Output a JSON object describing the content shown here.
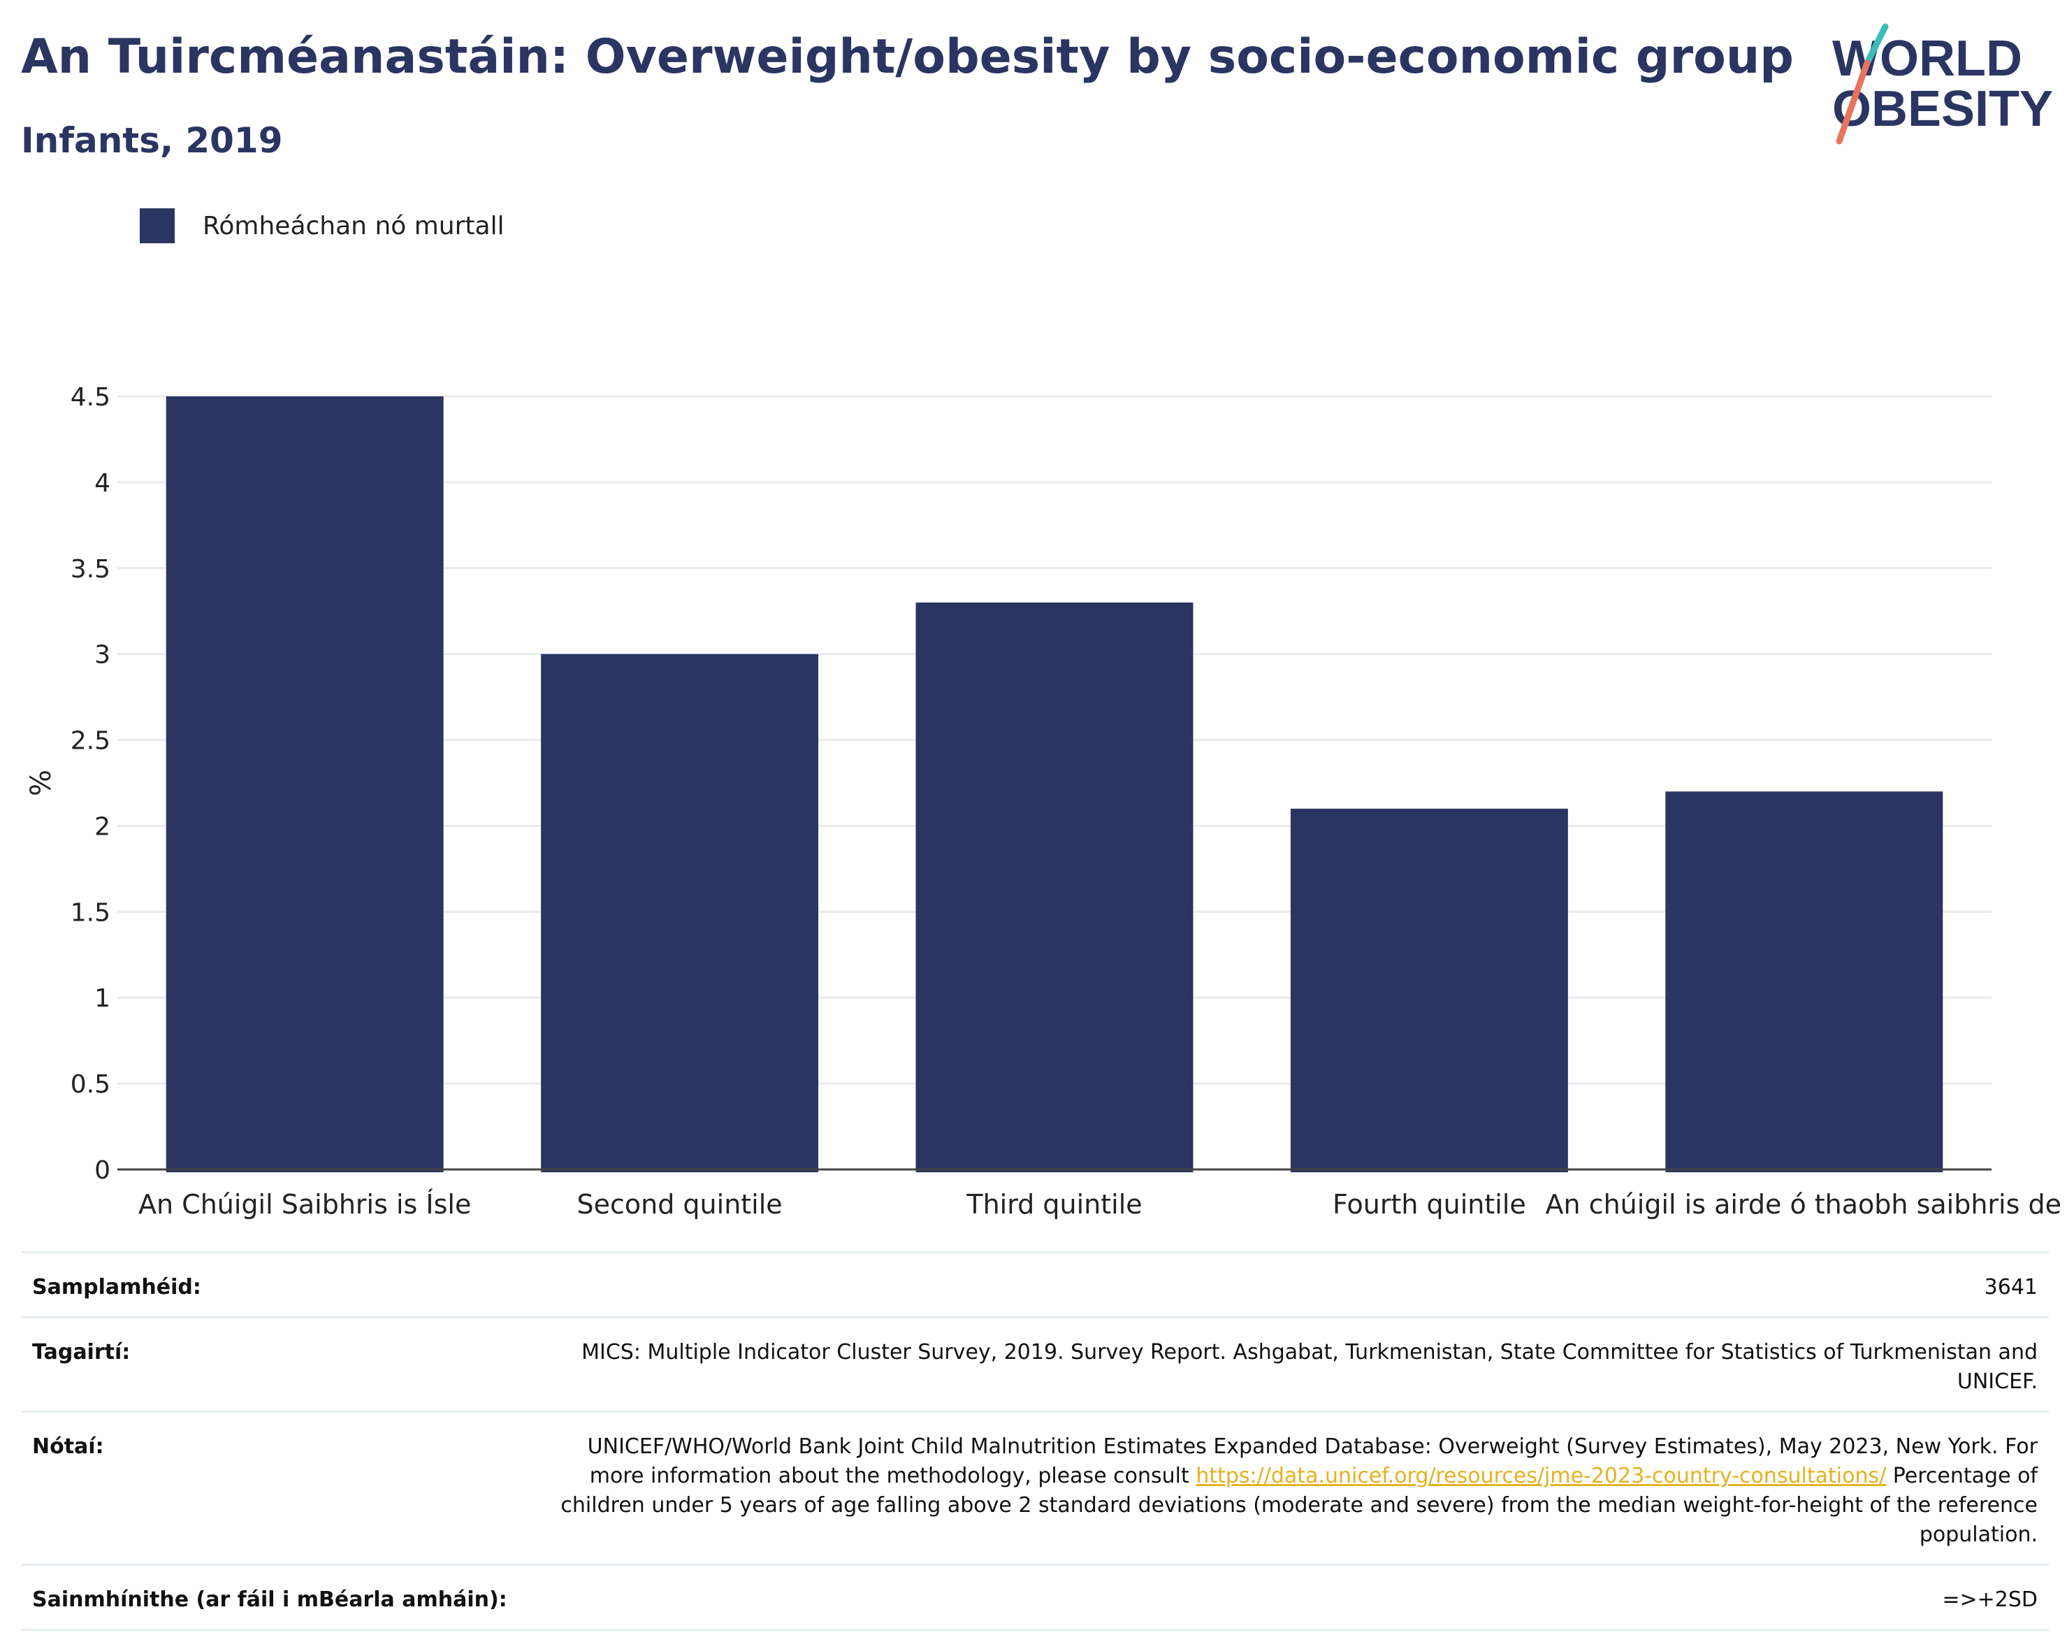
{
  "header": {
    "title": "An Tuircméanastáin: Overweight/obesity by socio-economic group",
    "subtitle": "Infants, 2019"
  },
  "logo": {
    "line1": "WORLD",
    "line2": "OBESITY"
  },
  "legend": {
    "label": "Rómheáchan nó murtall",
    "color": "#2b3562"
  },
  "chart_data": {
    "type": "bar",
    "categories": [
      "An Chúigil Saibhris is Ísle",
      "Second quintile",
      "Third quintile",
      "Fourth quintile",
      "An chúigil is airde ó thaobh saibhris de"
    ],
    "series": [
      {
        "name": "Rómheáchan nó murtall",
        "values": [
          4.5,
          3.0,
          3.3,
          2.1,
          2.2
        ],
        "color": "#2b3562"
      }
    ],
    "ylabel": "%",
    "ylim": [
      0,
      4.5
    ],
    "yticks": [
      "0",
      "0.5",
      "1",
      "1.5",
      "2",
      "2.5",
      "3",
      "3.5",
      "4",
      "4.5"
    ],
    "grid": true
  },
  "info": {
    "sample_label": "Samplamhéid:",
    "sample_value": "3641",
    "refs_label": "Tagairtí:",
    "refs_value": "MICS: Multiple Indicator Cluster Survey, 2019. Survey Report. Ashgabat, Turkmenistan, State Committee for Statistics of Turkmenistan and UNICEF.",
    "notes_label": "Nótaí:",
    "notes_text1": "UNICEF/WHO/World Bank Joint Child Malnutrition Estimates Expanded Database: Overweight (Survey Estimates), May 2023, New York. For more information about the methodology, please consult ",
    "notes_link": "https://data.unicef.org/resources/jme-2023-country-consultations/",
    "notes_text2": " Percentage of children under 5 years of age falling above 2 standard deviations (moderate and severe) from the median weight-for-height of the reference population.",
    "defs_label": "Sainmhínithe (ar fáil i mBéarla amháin):",
    "defs_value": "=>+2SD"
  }
}
